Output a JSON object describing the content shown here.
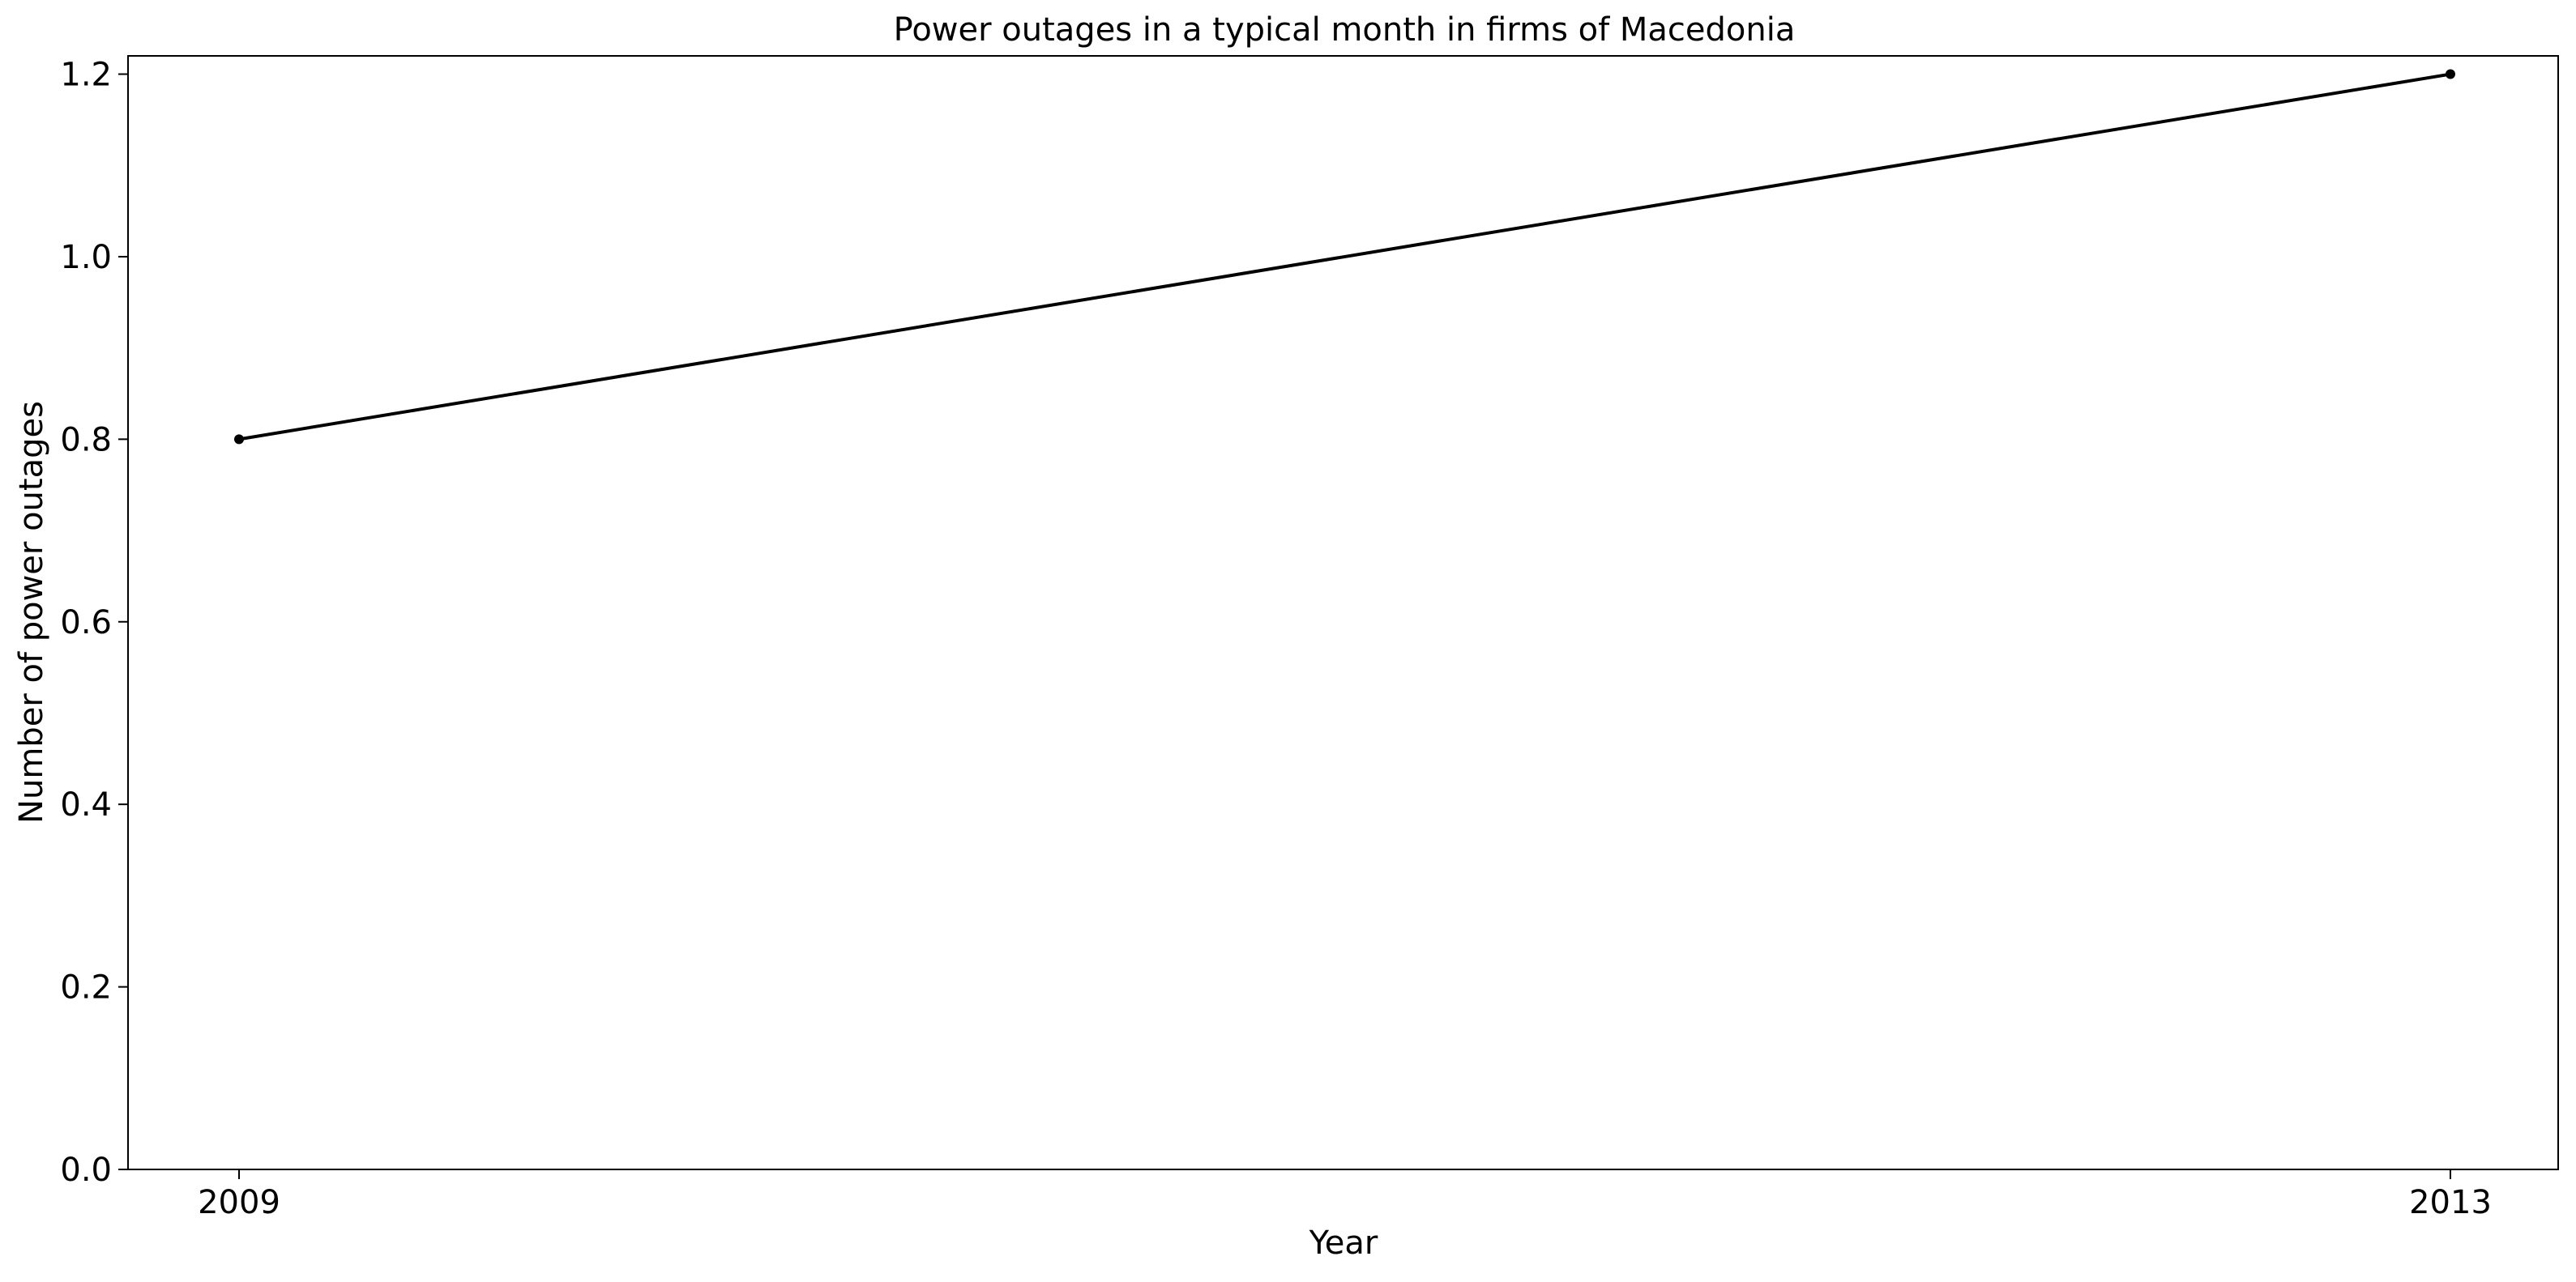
{
  "chart_data": {
    "type": "line",
    "title": "Power outages in a typical month in firms of Macedonia",
    "xlabel": "Year",
    "ylabel": "Number of power outages",
    "x": [
      2009,
      2013
    ],
    "x_tick_labels": [
      "2009",
      "2013"
    ],
    "series": [
      {
        "values": [
          0.8,
          1.2
        ],
        "color": "#000000",
        "marker": "dot"
      }
    ],
    "ylim": [
      0.0,
      1.22
    ],
    "y_ticks": [
      0.0,
      0.2,
      0.4,
      0.6,
      0.8,
      1.0,
      1.2
    ],
    "y_tick_labels": [
      "0.0",
      "0.2",
      "0.4",
      "0.6",
      "0.8",
      "1.0",
      "1.2"
    ],
    "grid": false,
    "legend": "none"
  }
}
